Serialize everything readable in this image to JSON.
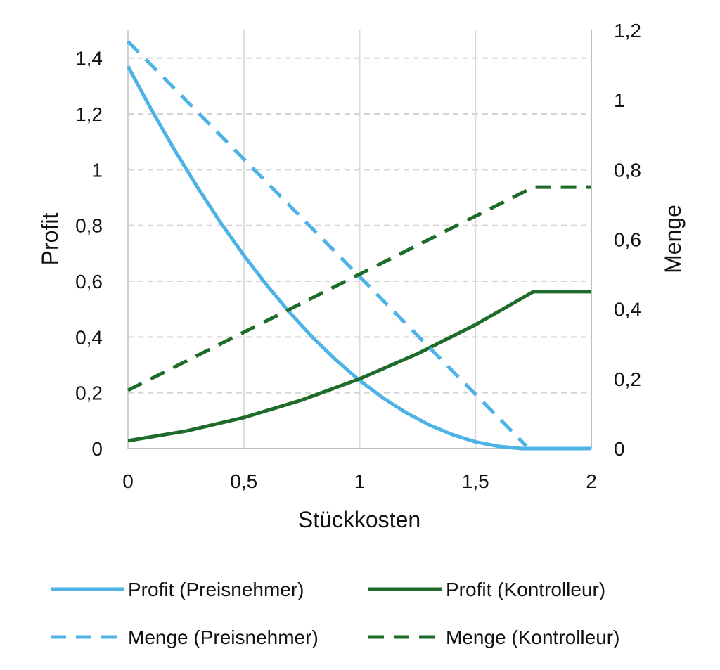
{
  "chart_data": {
    "type": "line",
    "title": "",
    "xlabel": "Stückkosten",
    "ylabel": "Profit",
    "y2label": "Menge",
    "xlim": [
      0,
      2
    ],
    "ylim": [
      0,
      1.5
    ],
    "y2lim": [
      0,
      1.2
    ],
    "xticks": [
      "0",
      "0,5",
      "1",
      "1,5",
      "2"
    ],
    "xtick_values": [
      0,
      0.5,
      1,
      1.5,
      2
    ],
    "yticks": [
      "0",
      "0,2",
      "0,4",
      "0,6",
      "0,8",
      "1",
      "1,2",
      "1,4"
    ],
    "ytick_values": [
      0,
      0.2,
      0.4,
      0.6,
      0.8,
      1,
      1.2,
      1.4
    ],
    "y2ticks": [
      "0",
      "0,2",
      "0,4",
      "0,6",
      "0,8",
      "1",
      "1,2"
    ],
    "y2tick_values": [
      0,
      0.2,
      0.4,
      0.6,
      0.8,
      1,
      1.2
    ],
    "grid": true,
    "legend_position": "bottom",
    "series": [
      {
        "name": "Profit (Preisnehmer)",
        "axis": "left",
        "color": "#4db3e6",
        "dashed": false,
        "x": [
          0,
          0.1,
          0.2,
          0.3,
          0.4,
          0.5,
          0.6,
          0.7,
          0.8,
          0.9,
          1.0,
          1.1,
          1.2,
          1.3,
          1.4,
          1.5,
          1.6,
          1.7,
          1.8,
          1.9,
          2.0
        ],
        "y": [
          1.371,
          1.217,
          1.072,
          0.937,
          0.81,
          0.693,
          0.585,
          0.486,
          0.396,
          0.316,
          0.244,
          0.182,
          0.129,
          0.085,
          0.05,
          0.024,
          0.008,
          0.0,
          0.0,
          0.0,
          0.0
        ]
      },
      {
        "name": "Profit (Kontrolleur)",
        "axis": "left",
        "color": "#1e6b2a",
        "dashed": false,
        "x": [
          0,
          0.25,
          0.5,
          0.75,
          1.0,
          1.25,
          1.5,
          1.75,
          2.0
        ],
        "y": [
          0.028,
          0.0625,
          0.111,
          0.174,
          0.25,
          0.34,
          0.444,
          0.5625,
          0.5625
        ]
      },
      {
        "name": "Menge (Preisnehmer)",
        "axis": "right",
        "color": "#4db3e6",
        "dashed": true,
        "x": [
          0,
          1.72
        ],
        "y": [
          1.168,
          0.007
        ]
      },
      {
        "name": "Menge (Kontrolleur)",
        "axis": "right",
        "color": "#1e6b2a",
        "dashed": true,
        "x": [
          0,
          1.75,
          2.0
        ],
        "y": [
          0.167,
          0.75,
          0.75
        ]
      }
    ]
  }
}
